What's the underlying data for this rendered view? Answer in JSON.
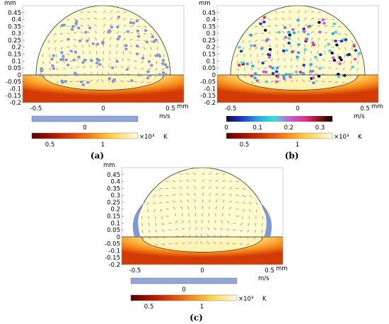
{
  "axes": {
    "unit_label": "mm",
    "y_ticks": [
      "0.45",
      "0.4",
      "0.35",
      "0.3",
      "0.25",
      "0.2",
      "0.15",
      "0.1",
      "0.05",
      "0",
      "-0.05",
      "-0.1",
      "-0.15",
      "-0.2"
    ],
    "x_ticks": [
      "-0.5",
      "0",
      "0.5"
    ]
  },
  "panels": [
    {
      "caption": "(a)",
      "has_particles": true,
      "particle_colors": "uniform",
      "velocity_legend": {
        "unit": "m/s",
        "ticks": [
          "0"
        ],
        "color": "#8fa6d9"
      },
      "temp_legend": {
        "unit": "K",
        "multiplier": "×10³",
        "ticks": [
          "0.5",
          "1"
        ]
      }
    },
    {
      "caption": "(b)",
      "has_particles": true,
      "particle_colors": "speed",
      "velocity_legend": {
        "unit": "m/s",
        "ticks": [
          "0",
          "0.1",
          "0.2",
          "0.3"
        ]
      },
      "temp_legend": {
        "unit": "K",
        "multiplier": "×10³",
        "ticks": [
          "0.5",
          "1"
        ]
      }
    },
    {
      "caption": "(c)",
      "has_particles": false,
      "particle_colors": "edge",
      "velocity_legend": {
        "unit": "m/s",
        "ticks": [
          "0"
        ],
        "color": "#8fa6d9"
      },
      "temp_legend": {
        "unit": "K",
        "multiplier": "×10³",
        "ticks": [
          "0.5",
          "1"
        ]
      }
    }
  ],
  "colors": {
    "dome_fill": "#fdfbd0",
    "substrate_top": "#fff3a0",
    "substrate_mid": "#f7a020",
    "substrate_bottom": "#d83808",
    "arrow": "#c24a4a",
    "particle_uniform": "#7f98d6",
    "outline": "#333333"
  }
}
